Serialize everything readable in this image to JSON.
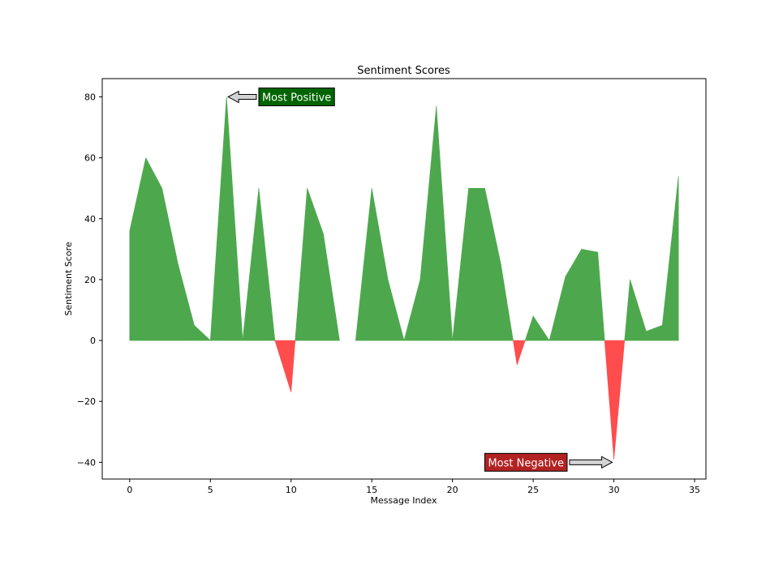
{
  "chart_data": {
    "type": "area",
    "title": "Sentiment Scores",
    "xlabel": "Message Index",
    "ylabel": "Sentiment Score",
    "xlim": [
      -1.7,
      35.7
    ],
    "ylim": [
      -45.5,
      86
    ],
    "xticks": [
      0,
      5,
      10,
      15,
      20,
      25,
      30,
      35
    ],
    "yticks": [
      -40,
      -20,
      0,
      20,
      40,
      60,
      80
    ],
    "x": [
      0,
      1,
      2,
      3,
      4,
      5,
      6,
      7,
      8,
      9,
      10,
      11,
      12,
      13,
      14,
      15,
      16,
      17,
      18,
      19,
      20,
      21,
      22,
      23,
      24,
      25,
      26,
      27,
      28,
      29,
      30,
      31,
      32,
      33,
      34
    ],
    "values": [
      36,
      60,
      50,
      25,
      5,
      0,
      80,
      0,
      50,
      0,
      -17,
      50,
      35,
      0,
      0,
      50,
      20,
      0,
      20,
      77,
      0,
      50,
      50,
      25,
      -8,
      8,
      0,
      21,
      30,
      29,
      -39,
      20,
      3,
      5,
      54
    ],
    "colors": {
      "positive": "#4da84d",
      "negative": "#ff4c4c"
    },
    "grid": false,
    "annotations": [
      {
        "text": "Most Positive",
        "target": [
          6,
          80
        ],
        "text_at": [
          8,
          80
        ],
        "box_color": "#006400",
        "text_color": "#ffffff"
      },
      {
        "text": "Most Negative",
        "target": [
          30,
          -40
        ],
        "text_at": [
          22,
          -40
        ],
        "box_color": "#b22222",
        "text_color": "#ffffff"
      }
    ]
  }
}
